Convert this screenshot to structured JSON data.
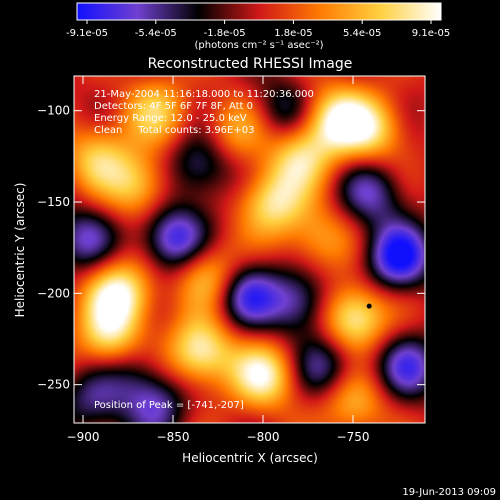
{
  "colorbar": {
    "tick_labels": [
      "-9.1e-05",
      "-5.4e-05",
      "-1.8e-05",
      "1.8e-05",
      "5.4e-05",
      "9.1e-05"
    ],
    "unit_label": "(photons cm⁻² s⁻¹ asec⁻²)",
    "range": [
      -9.1e-05,
      9.1e-05
    ],
    "colors": [
      "#1010ff",
      "#7040d0",
      "#000000",
      "#d01818",
      "#ff7a00",
      "#ffd040",
      "#ffffff"
    ]
  },
  "annotations": {
    "time_range": "21-May-2004 11:16:18.000 to 11:20:36.000",
    "detectors": "Detectors: 4F 5F 6F 7F 8F, Att 0",
    "energy_range": "Energy Range: 12.0 - 25.0 keV",
    "clean": "Clean     Total counts: 3.96E+03",
    "peak": "Position of Peak = [-741,-207]"
  },
  "footer": {
    "timestamp": "19-Jun-2013 09:09"
  },
  "chart_data": {
    "type": "heatmap",
    "title": "Reconstructed RHESSI Image",
    "xlabel": "Heliocentric X (arcsec)",
    "ylabel": "Heliocentric Y (arcsec)",
    "xlim": [
      -905,
      -710
    ],
    "ylim": [
      -271,
      -81
    ],
    "x_ticks": [
      -900,
      -850,
      -800,
      -750
    ],
    "y_ticks": [
      -100,
      -150,
      -200,
      -250
    ],
    "x_tick_labels": [
      "−900",
      "−850",
      "−800",
      "−750"
    ],
    "y_tick_labels": [
      "−100",
      "−150",
      "−200",
      "−250"
    ],
    "peak_position": [
      -741,
      -207
    ],
    "blobs": [
      {
        "x": -880,
        "y": -200,
        "v": 1.0
      },
      {
        "x": -885,
        "y": -225,
        "v": 0.8
      },
      {
        "x": -870,
        "y": -140,
        "v": 0.7
      },
      {
        "x": -893,
        "y": -125,
        "v": 0.6
      },
      {
        "x": -835,
        "y": -232,
        "v": 0.95
      },
      {
        "x": -830,
        "y": -190,
        "v": 0.7
      },
      {
        "x": -800,
        "y": -245,
        "v": 0.9
      },
      {
        "x": -795,
        "y": -150,
        "v": 0.8
      },
      {
        "x": -780,
        "y": -125,
        "v": 0.7
      },
      {
        "x": -760,
        "y": -105,
        "v": 0.9
      },
      {
        "x": -740,
        "y": -110,
        "v": 0.7
      },
      {
        "x": -750,
        "y": -213,
        "v": 1.0
      },
      {
        "x": -750,
        "y": -260,
        "v": 0.6
      },
      {
        "x": -860,
        "y": -100,
        "v": 0.6
      },
      {
        "x": -815,
        "y": -110,
        "v": 0.5
      },
      {
        "x": -770,
        "y": -170,
        "v": 0.5
      },
      {
        "x": -850,
        "y": -170,
        "v": -0.9
      },
      {
        "x": -835,
        "y": -130,
        "v": -0.6
      },
      {
        "x": -810,
        "y": -200,
        "v": -0.8
      },
      {
        "x": -780,
        "y": -205,
        "v": -0.7
      },
      {
        "x": -725,
        "y": -180,
        "v": -1.0
      },
      {
        "x": -720,
        "y": -240,
        "v": -0.7
      },
      {
        "x": -900,
        "y": -170,
        "v": -0.6
      },
      {
        "x": -895,
        "y": -260,
        "v": -0.5
      },
      {
        "x": -790,
        "y": -100,
        "v": -0.5
      },
      {
        "x": -860,
        "y": -260,
        "v": -0.6
      },
      {
        "x": -765,
        "y": -240,
        "v": -0.6
      },
      {
        "x": -740,
        "y": -145,
        "v": -0.6
      },
      {
        "x": -875,
        "y": -240,
        "v": -0.4
      }
    ]
  }
}
